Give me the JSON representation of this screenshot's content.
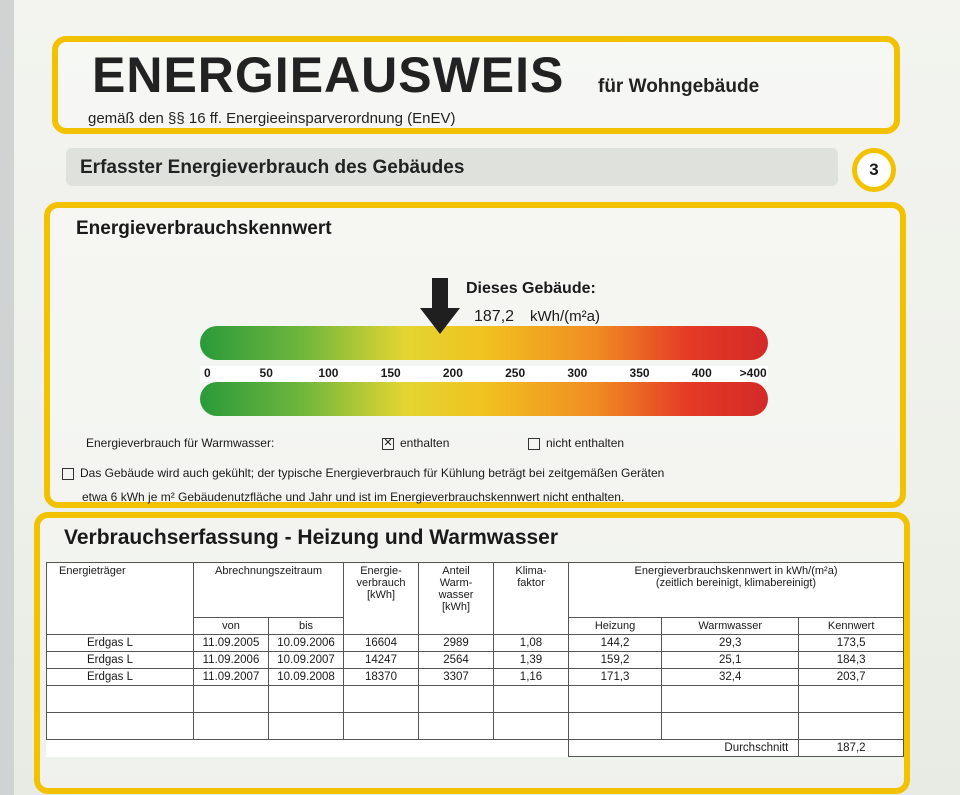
{
  "header": {
    "title": "ENERGIEAUSWEIS",
    "subtitle": "für Wohngebäude",
    "legal_basis": "gemäß den §§ 16 ff. Energieeinsparverordnung (EnEV)"
  },
  "section": {
    "title": "Erfasster Energieverbrauch des Gebäudes",
    "page_number": "3"
  },
  "kennwert": {
    "title": "Energieverbrauchskennwert",
    "building_label": "Dieses Gebäude:",
    "building_value": "187,2",
    "building_unit": "kWh/(m²a)",
    "scale_ticks": [
      "0",
      "50",
      "100",
      "150",
      "200",
      "250",
      "300",
      "350",
      "400",
      ">400"
    ],
    "warmwasser_label": "Energieverbrauch für Warmwasser:",
    "enthalten_label": "enthalten",
    "enthalten_checked": true,
    "nicht_enthalten_label": "nicht enthalten",
    "nicht_enthalten_checked": false,
    "cooling_line1": "Das Gebäude wird auch gekühlt; der typische Energieverbrauch für Kühlung beträgt bei zeitgemäßen Geräten",
    "cooling_line2": "etwa 6 kWh je m² Gebäudenutzfläche und Jahr und ist im Energieverbrauchskennwert nicht enthalten."
  },
  "verbrauch": {
    "title": "Verbrauchserfassung - Heizung und Warmwasser",
    "headers": {
      "traeger": "Energieträger",
      "zeitraum": "Abrechnungszeitraum",
      "von": "von",
      "bis": "bis",
      "verbrauch_l1": "Energie-",
      "verbrauch_l2": "verbrauch",
      "verbrauch_l3": "[kWh]",
      "anteil_l1": "Anteil",
      "anteil_l2": "Warm-",
      "anteil_l3": "wasser",
      "anteil_l4": "[kWh]",
      "klima_l1": "Klima-",
      "klima_l2": "faktor",
      "kennwert_l1": "Energieverbrauchskennwert in kWh/(m²a)",
      "kennwert_l2": "(zeitlich bereinigt, klimabereinigt)",
      "heizung": "Heizung",
      "warmwasser": "Warmwasser",
      "kennwert": "Kennwert"
    },
    "rows": [
      {
        "traeger": "Erdgas L",
        "von": "11.09.2005",
        "bis": "10.09.2006",
        "verbrauch": "16604",
        "anteil": "2989",
        "klima": "1,08",
        "heizung": "144,2",
        "warmwasser": "29,3",
        "kennwert": "173,5"
      },
      {
        "traeger": "Erdgas L",
        "von": "11.09.2006",
        "bis": "10.09.2007",
        "verbrauch": "14247",
        "anteil": "2564",
        "klima": "1,39",
        "heizung": "159,2",
        "warmwasser": "25,1",
        "kennwert": "184,3"
      },
      {
        "traeger": "Erdgas L",
        "von": "11.09.2007",
        "bis": "10.09.2008",
        "verbrauch": "18370",
        "anteil": "3307",
        "klima": "1,16",
        "heizung": "171,3",
        "warmwasser": "32,4",
        "kennwert": "203,7"
      }
    ],
    "durchschnitt_label": "Durchschnitt",
    "durchschnitt_value": "187,2"
  },
  "colors": {
    "frame": "#f2c200",
    "scale_green": "#2a9a3a",
    "scale_yellow": "#f1c21f",
    "scale_red": "#d42a28"
  }
}
